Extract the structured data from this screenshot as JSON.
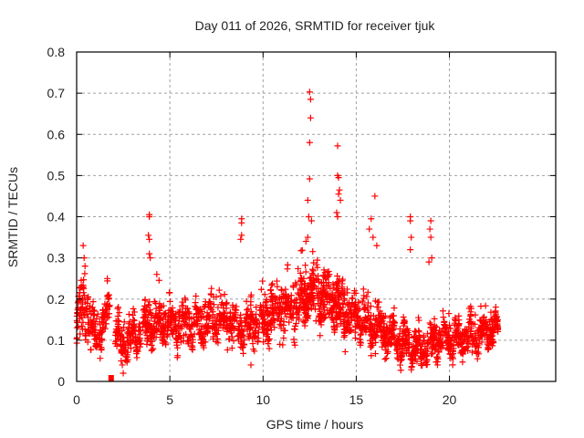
{
  "chart_data": {
    "type": "scatter",
    "title": "Day 011 of 2026, SRMTID for receiver tjuk",
    "xlabel": "GPS time / hours",
    "ylabel": "SRMTID / TECUs",
    "xlim": [
      0,
      25.7
    ],
    "ylim": [
      0,
      0.8
    ],
    "xticks": [
      0,
      5,
      10,
      15,
      20
    ],
    "xtick_labels": [
      "0",
      "5",
      "10",
      "15",
      "20"
    ],
    "yticks": [
      0,
      0.1,
      0.2,
      0.3,
      0.4,
      0.5,
      0.6,
      0.7,
      0.8
    ],
    "ytick_labels": [
      "0",
      "0.1",
      "0.2",
      "0.3",
      "0.4",
      "0.5",
      "0.6",
      "0.7",
      "0.8"
    ],
    "grid": true,
    "legend": "none",
    "marker": "+",
    "color": "#ff0000",
    "series": [
      {
        "name": "SRMTID",
        "envelope": [
          {
            "x": 0.0,
            "lo": 0.07,
            "mid": 0.13,
            "hi": 0.22
          },
          {
            "x": 0.4,
            "lo": 0.09,
            "mid": 0.17,
            "hi": 0.33
          },
          {
            "x": 0.9,
            "lo": 0.06,
            "mid": 0.11,
            "hi": 0.18
          },
          {
            "x": 1.4,
            "lo": 0.08,
            "mid": 0.13,
            "hi": 0.21
          },
          {
            "x": 1.7,
            "lo": 0.1,
            "mid": 0.17,
            "hi": 0.25
          },
          {
            "x": 2.3,
            "lo": 0.04,
            "mid": 0.09,
            "hi": 0.15
          },
          {
            "x": 3.0,
            "lo": 0.05,
            "mid": 0.1,
            "hi": 0.17
          },
          {
            "x": 3.6,
            "lo": 0.07,
            "mid": 0.13,
            "hi": 0.2
          },
          {
            "x": 4.4,
            "lo": 0.08,
            "mid": 0.14,
            "hi": 0.24
          },
          {
            "x": 5.5,
            "lo": 0.07,
            "mid": 0.13,
            "hi": 0.22
          },
          {
            "x": 6.5,
            "lo": 0.08,
            "mid": 0.14,
            "hi": 0.23
          },
          {
            "x": 7.5,
            "lo": 0.08,
            "mid": 0.15,
            "hi": 0.25
          },
          {
            "x": 8.5,
            "lo": 0.06,
            "mid": 0.13,
            "hi": 0.22
          },
          {
            "x": 9.5,
            "lo": 0.07,
            "mid": 0.13,
            "hi": 0.21
          },
          {
            "x": 10.5,
            "lo": 0.09,
            "mid": 0.16,
            "hi": 0.26
          },
          {
            "x": 11.5,
            "lo": 0.1,
            "mid": 0.18,
            "hi": 0.3
          },
          {
            "x": 12.5,
            "lo": 0.12,
            "mid": 0.22,
            "hi": 0.33
          },
          {
            "x": 13.5,
            "lo": 0.1,
            "mid": 0.2,
            "hi": 0.3
          },
          {
            "x": 14.5,
            "lo": 0.08,
            "mid": 0.16,
            "hi": 0.27
          },
          {
            "x": 15.5,
            "lo": 0.08,
            "mid": 0.15,
            "hi": 0.26
          },
          {
            "x": 16.5,
            "lo": 0.06,
            "mid": 0.12,
            "hi": 0.2
          },
          {
            "x": 17.5,
            "lo": 0.04,
            "mid": 0.09,
            "hi": 0.16
          },
          {
            "x": 18.5,
            "lo": 0.03,
            "mid": 0.07,
            "hi": 0.14
          },
          {
            "x": 19.5,
            "lo": 0.05,
            "mid": 0.1,
            "hi": 0.18
          },
          {
            "x": 20.5,
            "lo": 0.05,
            "mid": 0.1,
            "hi": 0.17
          },
          {
            "x": 21.5,
            "lo": 0.06,
            "mid": 0.11,
            "hi": 0.18
          },
          {
            "x": 22.6,
            "lo": 0.09,
            "mid": 0.13,
            "hi": 0.18
          }
        ],
        "outliers": [
          [
            0.35,
            0.33
          ],
          [
            0.4,
            0.3
          ],
          [
            0.45,
            0.28
          ],
          [
            3.9,
            0.405
          ],
          [
            3.9,
            0.4
          ],
          [
            3.85,
            0.355
          ],
          [
            3.9,
            0.345
          ],
          [
            3.9,
            0.31
          ],
          [
            3.95,
            0.3
          ],
          [
            4.3,
            0.26
          ],
          [
            8.85,
            0.395
          ],
          [
            8.85,
            0.385
          ],
          [
            8.85,
            0.355
          ],
          [
            8.8,
            0.345
          ],
          [
            12.5,
            0.703
          ],
          [
            12.55,
            0.685
          ],
          [
            12.55,
            0.64
          ],
          [
            12.5,
            0.58
          ],
          [
            12.5,
            0.492
          ],
          [
            12.4,
            0.44
          ],
          [
            12.45,
            0.4
          ],
          [
            12.6,
            0.39
          ],
          [
            12.4,
            0.35
          ],
          [
            12.3,
            0.34
          ],
          [
            14.0,
            0.572
          ],
          [
            14.0,
            0.5
          ],
          [
            14.05,
            0.495
          ],
          [
            14.1,
            0.465
          ],
          [
            14.05,
            0.455
          ],
          [
            14.15,
            0.44
          ],
          [
            13.95,
            0.41
          ],
          [
            14.0,
            0.4
          ],
          [
            16.0,
            0.45
          ],
          [
            15.8,
            0.395
          ],
          [
            15.7,
            0.37
          ],
          [
            15.9,
            0.35
          ],
          [
            16.1,
            0.33
          ],
          [
            17.9,
            0.4
          ],
          [
            17.9,
            0.39
          ],
          [
            17.95,
            0.35
          ],
          [
            17.9,
            0.32
          ],
          [
            19.0,
            0.39
          ],
          [
            18.95,
            0.37
          ],
          [
            19.0,
            0.35
          ],
          [
            19.05,
            0.3
          ],
          [
            18.9,
            0.29
          ],
          [
            9.35,
            0.04
          ],
          [
            2.5,
            0.02
          ],
          [
            2.45,
            0.04
          ]
        ],
        "gap_marker": [
          1.85,
          0.0
        ]
      }
    ]
  }
}
